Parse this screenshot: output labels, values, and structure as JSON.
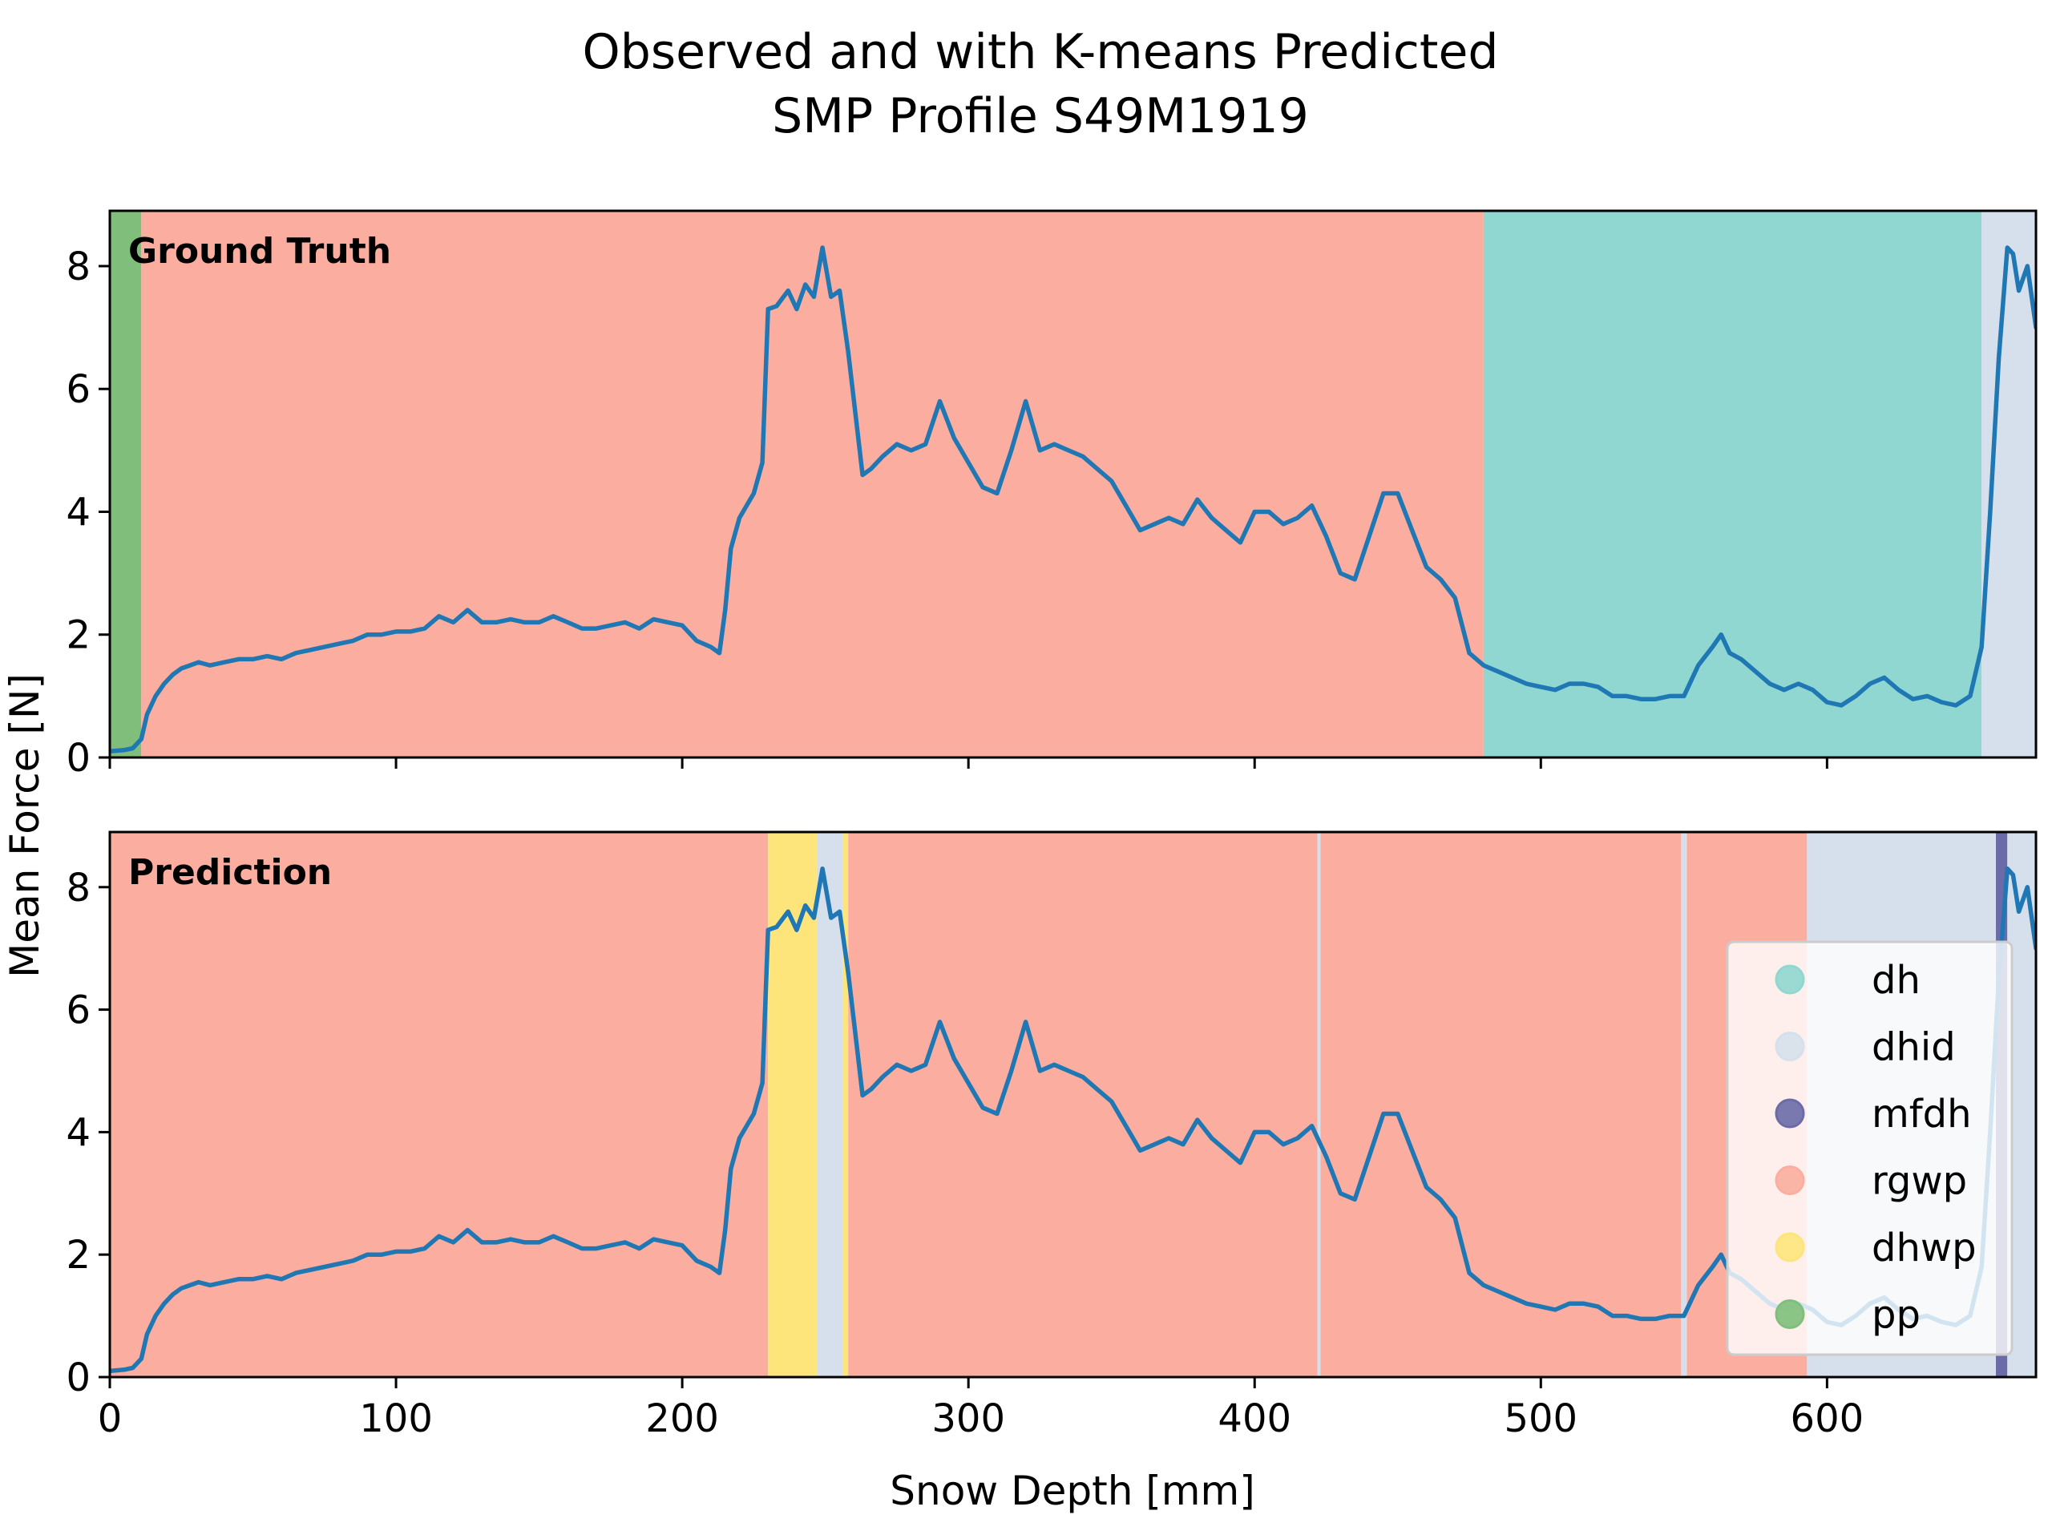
{
  "chart_data": {
    "type": "line",
    "title_line1": "Observed and with K-means Predicted",
    "title_line2": "SMP Profile S49M1919",
    "xlabel": "Snow Depth [mm]",
    "ylabel": "Mean Force [N]",
    "xlim": [
      0,
      673
    ],
    "ylim": [
      0,
      8.9
    ],
    "xticks": [
      "0",
      "100",
      "200",
      "300",
      "400",
      "500",
      "600"
    ],
    "yticks": [
      "0",
      "2",
      "4",
      "6",
      "8"
    ],
    "grid": false,
    "legend_position": "lower-right of bottom panel",
    "class_colors": {
      "dh": "#8fd7d0",
      "dhid": "#d6e0ec",
      "mfdh": "#6b6ba8",
      "rgwp": "#fbaea0",
      "dhwp": "#fde57c",
      "pp": "#7fbf7b"
    },
    "line_color": "#1f77b4",
    "legend": [
      "dh",
      "dhid",
      "mfdh",
      "rgwp",
      "dhwp",
      "pp"
    ],
    "panels": [
      {
        "label": "Ground Truth",
        "segments": [
          {
            "class": "pp",
            "from": 0,
            "to": 11
          },
          {
            "class": "rgwp",
            "from": 11,
            "to": 480
          },
          {
            "class": "dh",
            "from": 480,
            "to": 654
          },
          {
            "class": "dhid",
            "from": 654,
            "to": 673
          }
        ]
      },
      {
        "label": "Prediction",
        "segments": [
          {
            "class": "rgwp",
            "from": 0,
            "to": 230
          },
          {
            "class": "dhwp",
            "from": 230,
            "to": 247
          },
          {
            "class": "dhid",
            "from": 247,
            "to": 256
          },
          {
            "class": "dhwp",
            "from": 256,
            "to": 258
          },
          {
            "class": "rgwp",
            "from": 258,
            "to": 422
          },
          {
            "class": "dhid",
            "from": 422,
            "to": 423
          },
          {
            "class": "rgwp",
            "from": 423,
            "to": 549
          },
          {
            "class": "dhid",
            "from": 549,
            "to": 551
          },
          {
            "class": "rgwp",
            "from": 551,
            "to": 593
          },
          {
            "class": "dhid",
            "from": 593,
            "to": 659
          },
          {
            "class": "mfdh",
            "from": 659,
            "to": 663
          },
          {
            "class": "dhid",
            "from": 663,
            "to": 673
          }
        ]
      }
    ],
    "series": [
      {
        "x": [
          0,
          5,
          8,
          11,
          13,
          16,
          19,
          22,
          25,
          28,
          31,
          35,
          40,
          45,
          50,
          55,
          60,
          65,
          70,
          75,
          80,
          85,
          90,
          95,
          100,
          105,
          110,
          115,
          120,
          125,
          130,
          135,
          140,
          145,
          150,
          155,
          160,
          165,
          170,
          175,
          180,
          185,
          190,
          195,
          200,
          205,
          210,
          213,
          215,
          217,
          220,
          225,
          228,
          230,
          233,
          237,
          240,
          243,
          246,
          249,
          252,
          255,
          258,
          260,
          263,
          266,
          270,
          275,
          280,
          285,
          290,
          295,
          300,
          305,
          310,
          315,
          320,
          325,
          330,
          335,
          340,
          345,
          350,
          355,
          360,
          365,
          370,
          375,
          380,
          385,
          390,
          395,
          400,
          405,
          410,
          415,
          420,
          425,
          430,
          435,
          440,
          445,
          450,
          455,
          460,
          465,
          470,
          475,
          480,
          485,
          490,
          495,
          500,
          505,
          510,
          515,
          520,
          525,
          530,
          535,
          540,
          545,
          550,
          555,
          560,
          563,
          566,
          570,
          575,
          580,
          585,
          590,
          595,
          600,
          605,
          610,
          615,
          620,
          625,
          630,
          635,
          640,
          645,
          650,
          654,
          657,
          660,
          663,
          665,
          667,
          670,
          673
        ],
        "y": [
          0.1,
          0.12,
          0.15,
          0.3,
          0.7,
          1.0,
          1.2,
          1.35,
          1.45,
          1.5,
          1.55,
          1.5,
          1.55,
          1.6,
          1.6,
          1.65,
          1.6,
          1.7,
          1.75,
          1.8,
          1.85,
          1.9,
          2.0,
          2.0,
          2.05,
          2.05,
          2.1,
          2.3,
          2.2,
          2.4,
          2.2,
          2.2,
          2.25,
          2.2,
          2.2,
          2.3,
          2.2,
          2.1,
          2.1,
          2.15,
          2.2,
          2.1,
          2.25,
          2.2,
          2.15,
          1.9,
          1.8,
          1.7,
          2.4,
          3.4,
          3.9,
          4.3,
          4.8,
          7.3,
          7.35,
          7.6,
          7.3,
          7.7,
          7.5,
          8.3,
          7.5,
          7.6,
          6.6,
          5.8,
          4.6,
          4.7,
          4.9,
          5.1,
          5.0,
          5.1,
          5.8,
          5.2,
          4.8,
          4.4,
          4.3,
          5.0,
          5.8,
          5.0,
          5.1,
          5.0,
          4.9,
          4.7,
          4.5,
          4.1,
          3.7,
          3.8,
          3.9,
          3.8,
          4.2,
          3.9,
          3.7,
          3.5,
          4.0,
          4.0,
          3.8,
          3.9,
          4.1,
          3.6,
          3.0,
          2.9,
          3.6,
          4.3,
          4.3,
          3.7,
          3.1,
          2.9,
          2.6,
          1.7,
          1.5,
          1.4,
          1.3,
          1.2,
          1.15,
          1.1,
          1.2,
          1.2,
          1.15,
          1.0,
          1.0,
          0.95,
          0.95,
          1.0,
          1.0,
          1.5,
          1.8,
          2.0,
          1.7,
          1.6,
          1.4,
          1.2,
          1.1,
          1.2,
          1.1,
          0.9,
          0.85,
          1.0,
          1.2,
          1.3,
          1.1,
          0.95,
          1.0,
          0.9,
          0.85,
          1.0,
          1.8,
          4.0,
          6.5,
          8.3,
          8.2,
          7.6,
          8.0,
          7.0
        ]
      }
    ]
  }
}
